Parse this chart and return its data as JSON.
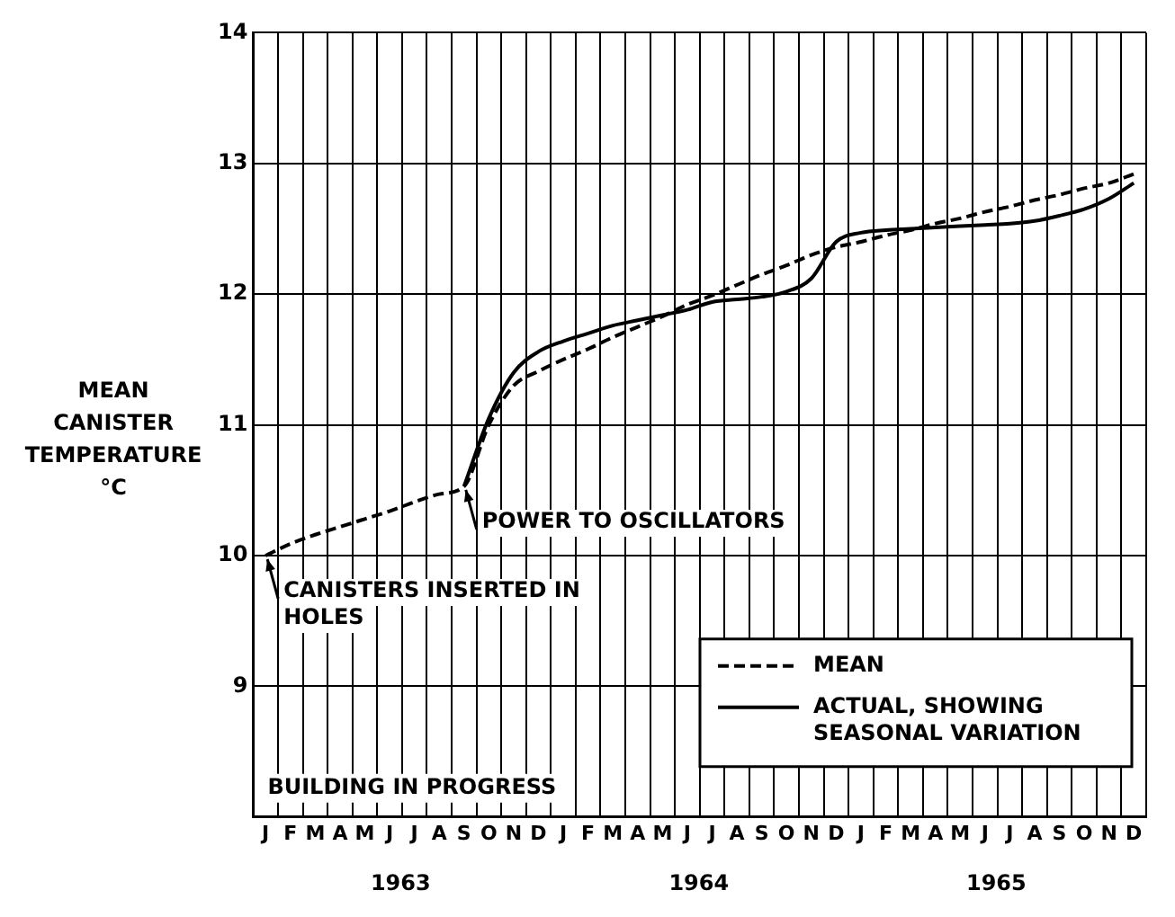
{
  "chart_data": {
    "type": "line",
    "ylabel": "MEAN CANISTER TEMPERATURE °C",
    "categories": [
      "J",
      "F",
      "M",
      "A",
      "M",
      "J",
      "J",
      "A",
      "S",
      "O",
      "N",
      "D",
      "J",
      "F",
      "M",
      "A",
      "M",
      "J",
      "J",
      "A",
      "S",
      "O",
      "N",
      "D",
      "J",
      "F",
      "M",
      "A",
      "M",
      "J",
      "J",
      "A",
      "S",
      "O",
      "N",
      "D"
    ],
    "x2lim": [
      "1963-01-01",
      "1966-01-01"
    ],
    "x2ticks": [
      {
        "value": "1963-07-01",
        "label": "1963"
      },
      {
        "value": "1964-07-01",
        "label": "1964"
      },
      {
        "value": "1965-07-01",
        "label": "1965"
      }
    ],
    "ylim": [
      8,
      14
    ],
    "yticks": [
      9,
      10,
      11,
      12,
      13,
      14
    ],
    "grid": true,
    "legend": "bottom right",
    "marker": "none",
    "series": [
      {
        "name": "MEAN",
        "color": "#000000",
        "line_style": "dashed",
        "values": [
          10.0,
          10.09,
          10.16,
          10.22,
          10.28,
          10.34,
          10.41,
          10.47,
          10.53,
          11.0,
          11.3,
          11.41,
          11.5,
          11.58,
          11.67,
          11.75,
          11.83,
          11.92,
          11.99,
          12.07,
          12.15,
          12.22,
          12.3,
          12.36,
          12.4,
          12.45,
          12.49,
          12.54,
          12.58,
          12.63,
          12.67,
          12.72,
          12.76,
          12.81,
          12.85,
          12.92
        ]
      },
      {
        "name": "ACTUAL, SHOWING SEASONAL VARIATION",
        "color": "#000000",
        "line_style": "solid",
        "values": [
          null,
          null,
          null,
          null,
          null,
          null,
          null,
          null,
          10.53,
          11.05,
          11.4,
          11.56,
          11.64,
          11.7,
          11.76,
          11.8,
          11.84,
          11.88,
          11.94,
          11.96,
          11.98,
          12.02,
          12.12,
          12.4,
          12.47,
          12.49,
          12.5,
          12.51,
          12.52,
          12.53,
          12.54,
          12.56,
          12.6,
          12.65,
          12.73,
          12.85
        ]
      }
    ],
    "annotations": [
      "POWER TO OSCILLATORS",
      "CANISTERS INSERTED IN HOLES",
      "BUILDING IN PROGRESS"
    ]
  }
}
